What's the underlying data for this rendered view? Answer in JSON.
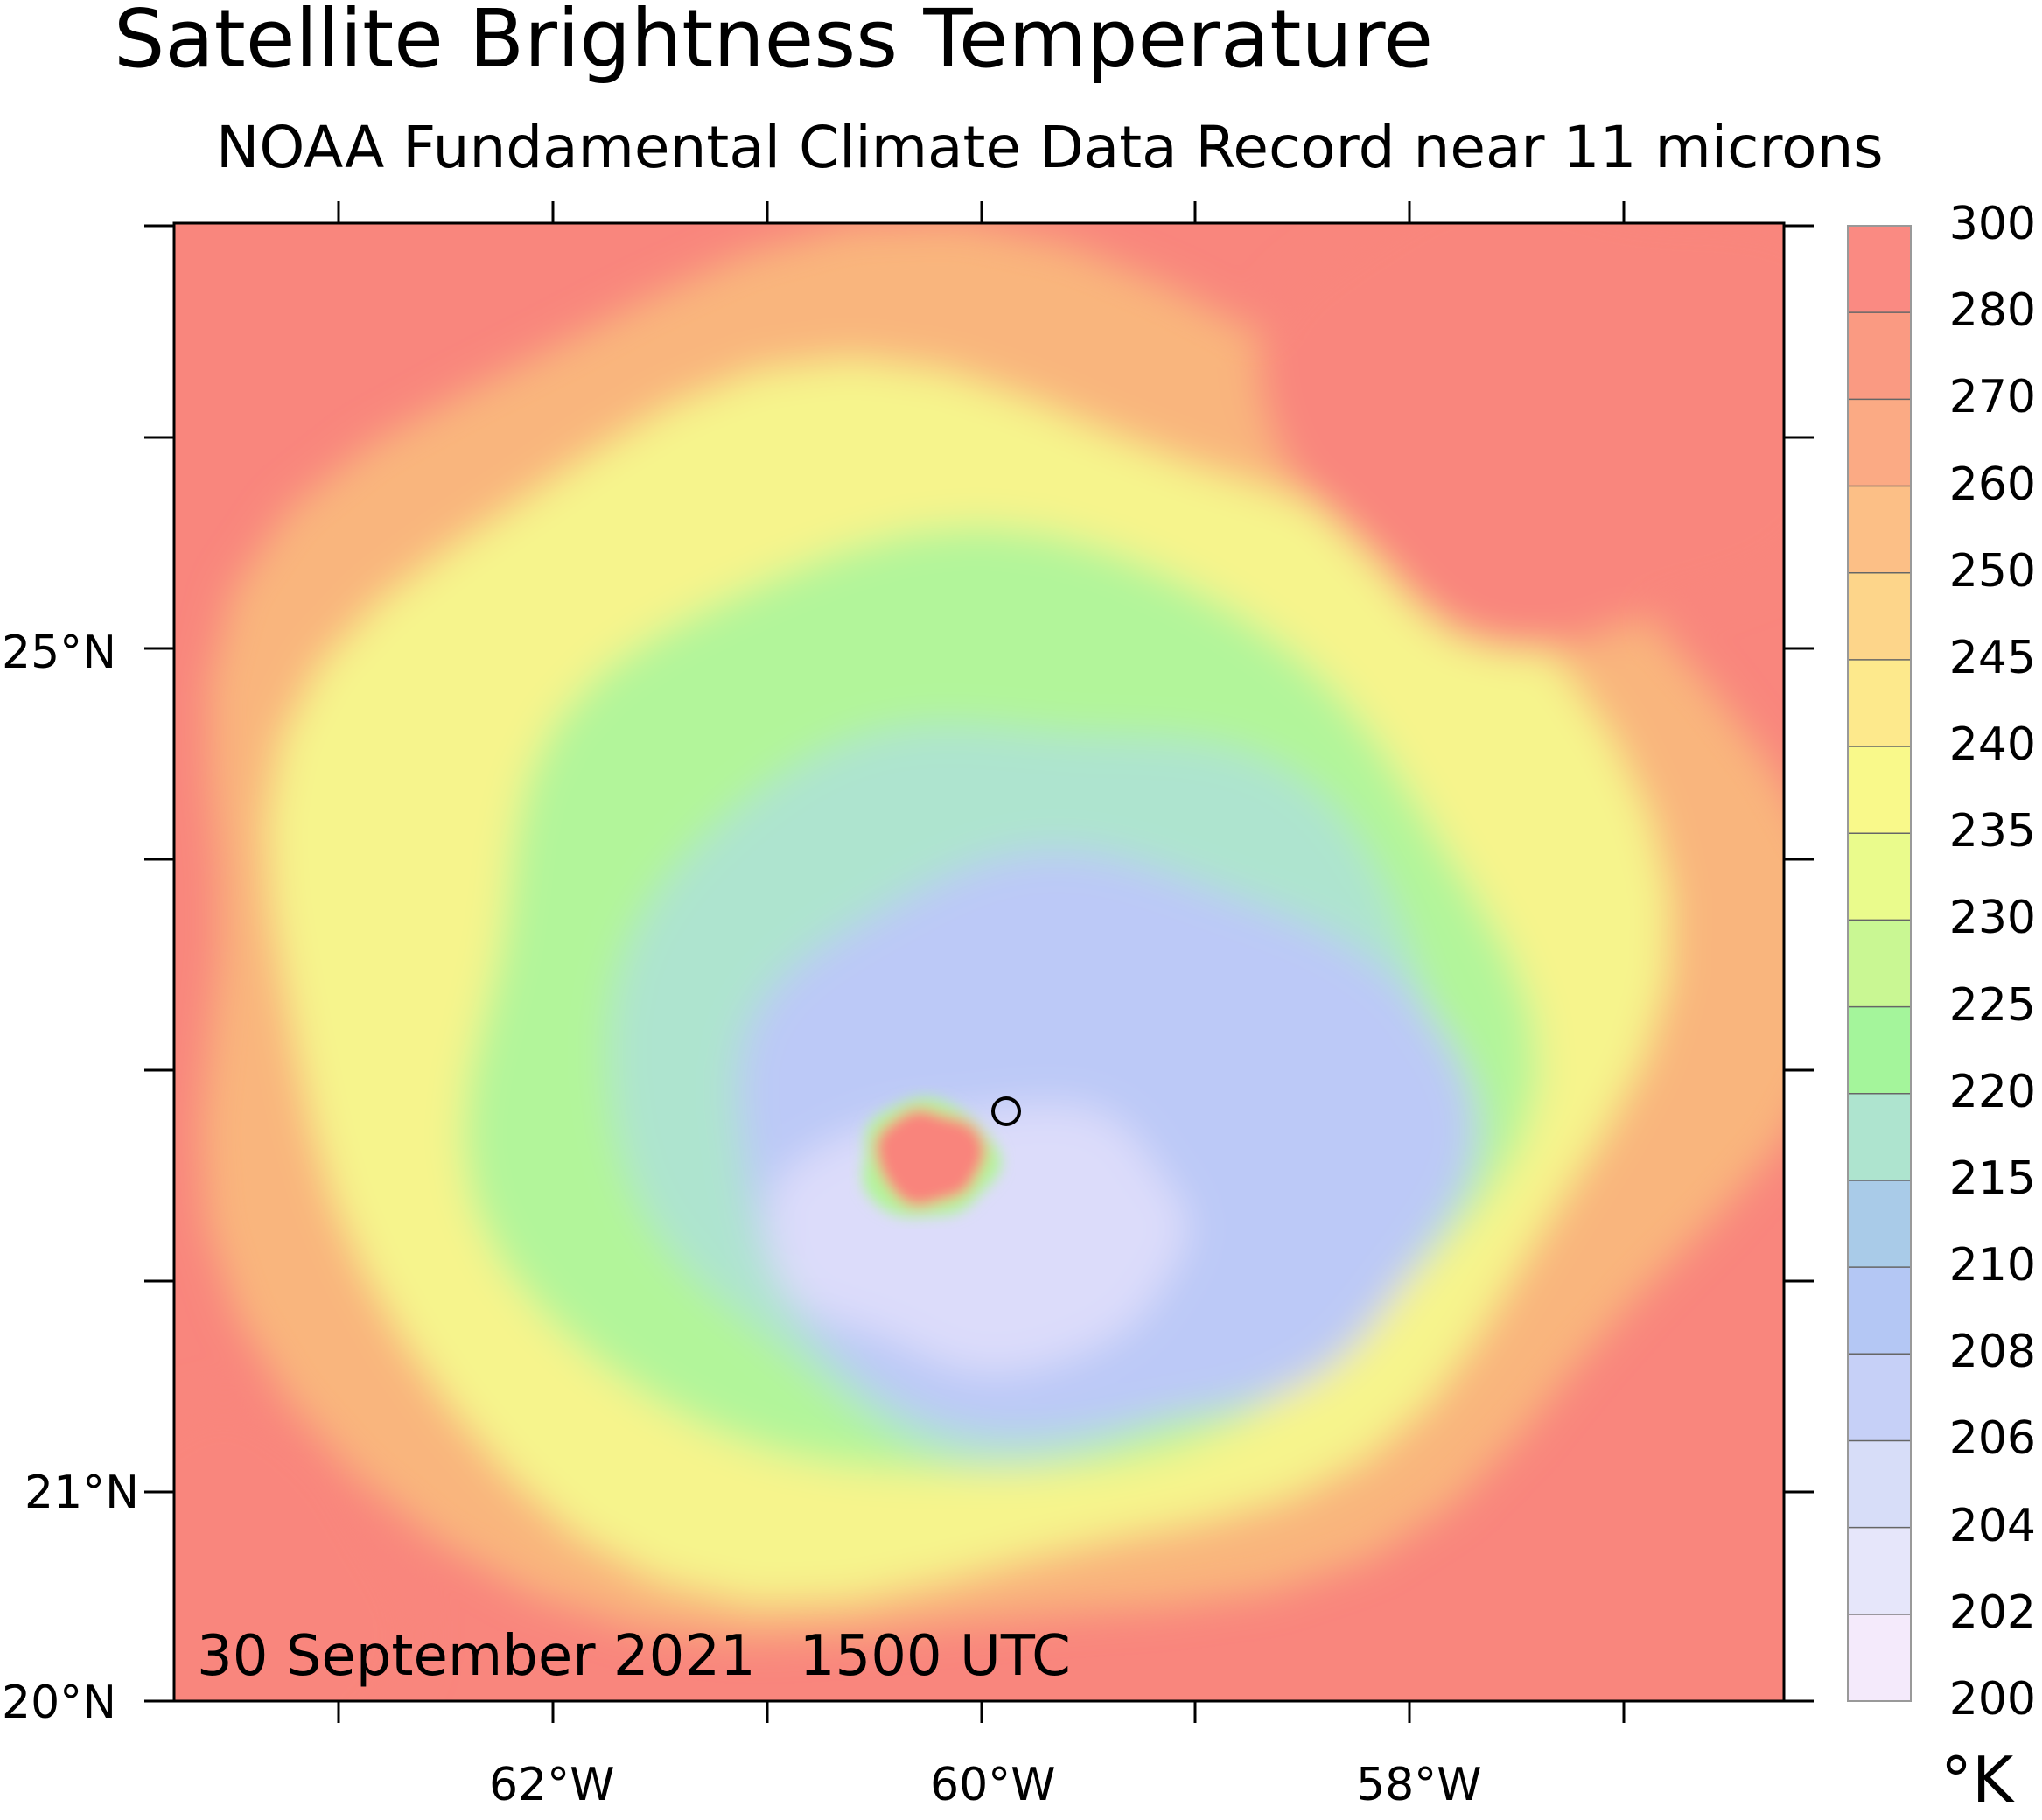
{
  "header": {
    "title": "Satellite Brightness Temperature",
    "subtitle": "NOAA Fundamental Climate Data Record near 11 microns"
  },
  "map": {
    "lon_labels": [
      "62°W",
      "60°W",
      "58°W"
    ],
    "lat_labels": [
      "25°N",
      "21°N",
      "20°N"
    ],
    "date": "30 September 2021",
    "time": "1500 UTC",
    "center_marker": "circle-marker",
    "colors": {
      "eye": "#f9847c",
      "core_cold": "#dcdcfa",
      "core": "#bcc9f7",
      "moat": "#aee4cf",
      "green": "#b2f59a",
      "yellow": "#f6f48c",
      "orange": "#f9b57d",
      "warm": "#f9867d"
    }
  },
  "colorbar": {
    "units": "°K",
    "levels": [
      "300",
      "280",
      "270",
      "260",
      "250",
      "245",
      "240",
      "235",
      "230",
      "225",
      "220",
      "215",
      "210",
      "208",
      "206",
      "204",
      "202",
      "200"
    ],
    "colors": [
      "#fa8a82",
      "#fa9a82",
      "#fbaa84",
      "#fcbf86",
      "#fdd58a",
      "#fde98c",
      "#f9f98a",
      "#eafb8c",
      "#c9f793",
      "#a4f59b",
      "#aee4cf",
      "#a9cbe8",
      "#b4c7f4",
      "#c6d0f7",
      "#d7ddf8",
      "#e6e6fa",
      "#f4eafb"
    ]
  }
}
